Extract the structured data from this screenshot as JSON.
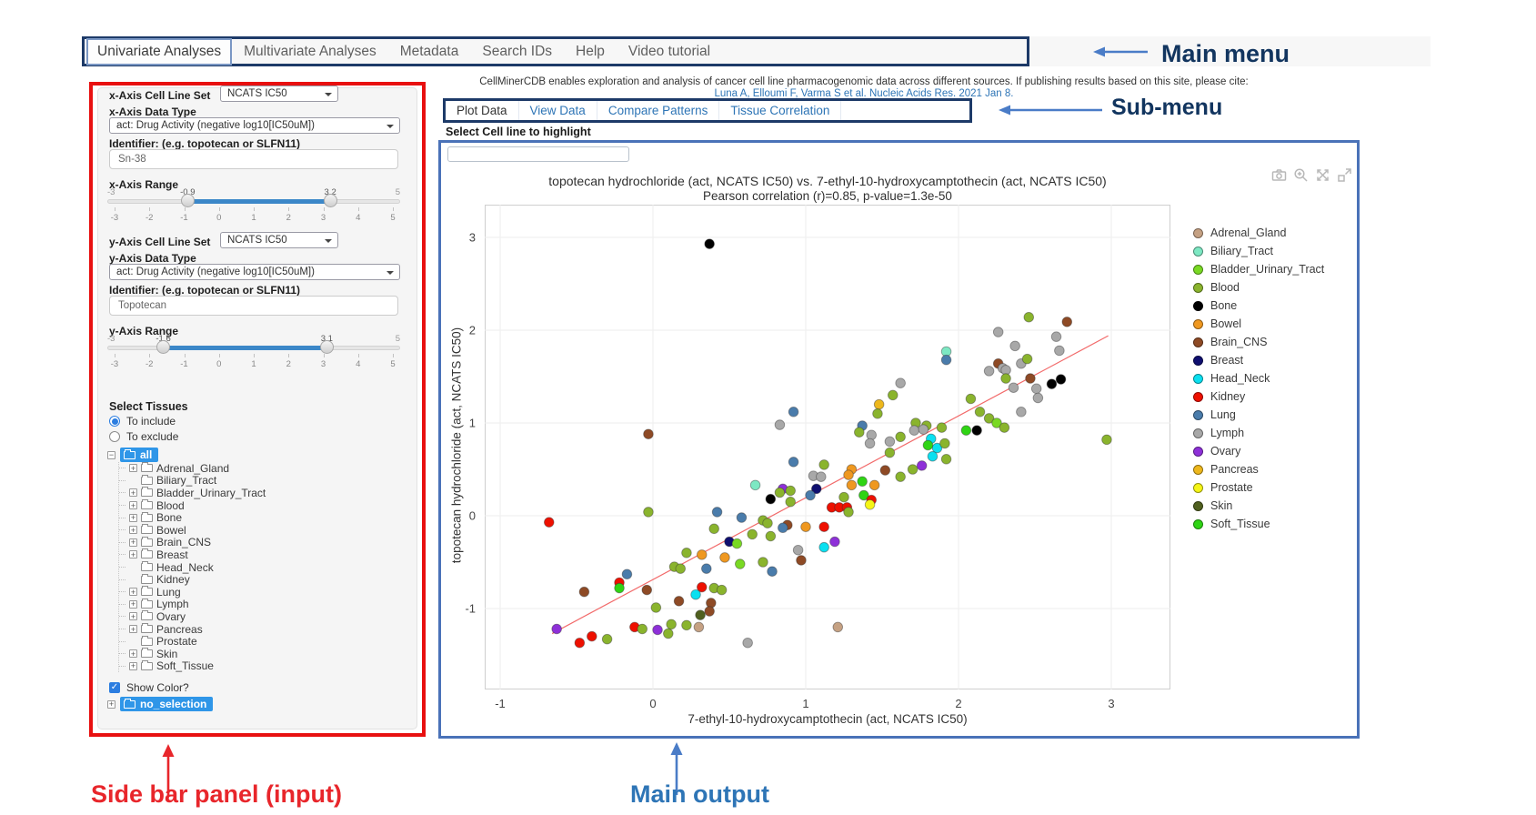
{
  "annotations": {
    "main_menu": "Main menu",
    "sub_menu": "Sub-menu",
    "sidebar": "Side bar panel (input)",
    "main_output": "Main output"
  },
  "main_menu": {
    "items": [
      {
        "label": "Univariate Analyses",
        "active": true
      },
      {
        "label": "Multivariate Analyses",
        "active": false
      },
      {
        "label": "Metadata",
        "active": false
      },
      {
        "label": "Search IDs",
        "active": false
      },
      {
        "label": "Help",
        "active": false
      },
      {
        "label": "Video tutorial",
        "active": false
      }
    ]
  },
  "citation": {
    "line1": "CellMinerCDB enables exploration and analysis of cancer cell line pharmacogenomic data across different sources. If publishing results based on this site, please cite:",
    "link": "Luna A, Elloumi F, Varma S et al. Nucleic Acids Res. 2021 Jan 8."
  },
  "sub_menu": {
    "tabs": [
      {
        "label": "Plot Data",
        "active": true
      },
      {
        "label": "View Data",
        "active": false
      },
      {
        "label": "Compare Patterns",
        "active": false
      },
      {
        "label": "Tissue Correlation",
        "active": false
      }
    ]
  },
  "highlight": {
    "label": "Select Cell line to highlight",
    "value": ""
  },
  "sidebar": {
    "x_axis": {
      "cell_line_set_label": "x-Axis Cell Line Set",
      "cell_line_set_value": "NCATS IC50",
      "data_type_label": "x-Axis Data Type",
      "data_type_value": "act: Drug Activity (negative log10[IC50uM])",
      "identifier_label": "Identifier: (e.g. topotecan or SLFN11)",
      "identifier_value": "Sn-38",
      "range_label": "x-Axis Range",
      "range": {
        "min": -3,
        "max": 5,
        "from": -0.9,
        "to": 3.2,
        "ticks": [
          -3,
          -2,
          -1,
          0,
          1,
          2,
          3,
          4,
          5
        ]
      }
    },
    "y_axis": {
      "cell_line_set_label": "y-Axis Cell Line Set",
      "cell_line_set_value": "NCATS IC50",
      "data_type_label": "y-Axis Data Type",
      "data_type_value": "act: Drug Activity (negative log10[IC50uM])",
      "identifier_label": "Identifier: (e.g. topotecan or SLFN11)",
      "identifier_value": "Topotecan",
      "range_label": "y-Axis Range",
      "range": {
        "min": -3,
        "max": 5,
        "from": -1.6,
        "to": 3.1,
        "ticks": [
          -3,
          -2,
          -1,
          0,
          1,
          2,
          3,
          4,
          5
        ]
      }
    },
    "tissues": {
      "label": "Select Tissues",
      "include_label": "To include",
      "exclude_label": "To exclude",
      "include_selected": true,
      "root": "all",
      "items": [
        {
          "name": "Adrenal_Gland",
          "expandable": true
        },
        {
          "name": "Biliary_Tract",
          "expandable": false
        },
        {
          "name": "Bladder_Urinary_Tract",
          "expandable": true
        },
        {
          "name": "Blood",
          "expandable": true
        },
        {
          "name": "Bone",
          "expandable": true
        },
        {
          "name": "Bowel",
          "expandable": true
        },
        {
          "name": "Brain_CNS",
          "expandable": true
        },
        {
          "name": "Breast",
          "expandable": true
        },
        {
          "name": "Head_Neck",
          "expandable": false
        },
        {
          "name": "Kidney",
          "expandable": false
        },
        {
          "name": "Lung",
          "expandable": true
        },
        {
          "name": "Lymph",
          "expandable": true
        },
        {
          "name": "Ovary",
          "expandable": true
        },
        {
          "name": "Pancreas",
          "expandable": true
        },
        {
          "name": "Prostate",
          "expandable": false
        },
        {
          "name": "Skin",
          "expandable": true
        },
        {
          "name": "Soft_Tissue",
          "expandable": true
        }
      ],
      "show_color_label": "Show Color?",
      "show_color_checked": true,
      "selection_node": "no_selection"
    }
  },
  "plot": {
    "modebar_icons": [
      "camera-icon",
      "zoom-icon",
      "pan-icon",
      "autoscale-icon"
    ]
  },
  "chart_data": {
    "type": "scatter",
    "title": "topotecan hydrochloride (act, NCATS IC50) vs. 7-ethyl-10-hydroxycamptothecin (act, NCATS IC50)",
    "subtitle": "Pearson correlation (r)=0.85, p-value=1.3e-50",
    "xlabel": "7-ethyl-10-hydroxycamptothecin (act, NCATS IC50)",
    "ylabel": "topotecan hydrochloride (act, NCATS IC50)",
    "x_ticks": [
      -1,
      0,
      1,
      2,
      3
    ],
    "y_ticks": [
      -1,
      0,
      1,
      2,
      3
    ],
    "xlim": [
      -1.1,
      3.38
    ],
    "ylim": [
      -1.87,
      3.35
    ],
    "grid": true,
    "legend_position": "right",
    "regression_line": {
      "x1": -0.66,
      "y1": -1.27,
      "x2": 2.98,
      "y2": 1.94,
      "color": "#f26a6a"
    },
    "legend": [
      {
        "name": "Adrenal_Gland",
        "color": "#c5a183"
      },
      {
        "name": "Biliary_Tract",
        "color": "#7de8c3"
      },
      {
        "name": "Bladder_Urinary_Tract",
        "color": "#79d923"
      },
      {
        "name": "Blood",
        "color": "#8ab42d"
      },
      {
        "name": "Bone",
        "color": "#000000"
      },
      {
        "name": "Bowel",
        "color": "#ef9820"
      },
      {
        "name": "Brain_CNS",
        "color": "#8e4a25"
      },
      {
        "name": "Breast",
        "color": "#0f0f70"
      },
      {
        "name": "Head_Neck",
        "color": "#0ae0f0"
      },
      {
        "name": "Kidney",
        "color": "#ee1000"
      },
      {
        "name": "Lung",
        "color": "#4a7cab"
      },
      {
        "name": "Lymph",
        "color": "#a8a8a8"
      },
      {
        "name": "Ovary",
        "color": "#8e30d8"
      },
      {
        "name": "Pancreas",
        "color": "#edb71c"
      },
      {
        "name": "Prostate",
        "color": "#f5f516"
      },
      {
        "name": "Skin",
        "color": "#50601f"
      },
      {
        "name": "Soft_Tissue",
        "color": "#2fd414"
      }
    ],
    "points": [
      [
        0.37,
        2.93,
        "Bone"
      ],
      [
        2.46,
        2.14,
        "Blood"
      ],
      [
        2.71,
        2.09,
        "Brain_CNS"
      ],
      [
        2.26,
        1.98,
        "Lymph"
      ],
      [
        2.64,
        1.93,
        "Lymph"
      ],
      [
        2.37,
        1.83,
        "Lymph"
      ],
      [
        2.66,
        1.78,
        "Lymph"
      ],
      [
        1.92,
        1.77,
        "Biliary_Tract"
      ],
      [
        1.92,
        1.68,
        "Lung"
      ],
      [
        2.26,
        1.64,
        "Brain_CNS"
      ],
      [
        2.29,
        1.59,
        "Lymph"
      ],
      [
        2.2,
        1.56,
        "Lymph"
      ],
      [
        2.31,
        1.57,
        "Lymph"
      ],
      [
        2.41,
        1.64,
        "Lymph"
      ],
      [
        2.45,
        1.69,
        "Blood"
      ],
      [
        2.31,
        1.48,
        "Blood"
      ],
      [
        2.47,
        1.48,
        "Brain_CNS"
      ],
      [
        2.61,
        1.42,
        "Bone"
      ],
      [
        2.67,
        1.47,
        "Bone"
      ],
      [
        2.51,
        1.37,
        "Lymph"
      ],
      [
        2.52,
        1.27,
        "Lymph"
      ],
      [
        2.36,
        1.38,
        "Lymph"
      ],
      [
        2.08,
        1.26,
        "Blood"
      ],
      [
        2.41,
        1.12,
        "Lymph"
      ],
      [
        2.14,
        1.12,
        "Blood"
      ],
      [
        2.2,
        1.05,
        "Blood"
      ],
      [
        2.25,
        1.0,
        "Bladder_Urinary_Tract"
      ],
      [
        2.3,
        0.95,
        "Blood"
      ],
      [
        1.72,
        1.0,
        "Blood"
      ],
      [
        1.79,
        0.97,
        "Blood"
      ],
      [
        1.89,
        0.95,
        "Blood"
      ],
      [
        1.71,
        0.92,
        "Lymph"
      ],
      [
        1.77,
        0.93,
        "Lymph"
      ],
      [
        2.12,
        0.92,
        "Bone"
      ],
      [
        2.05,
        0.92,
        "Soft_Tissue"
      ],
      [
        1.82,
        0.83,
        "Head_Neck"
      ],
      [
        1.86,
        0.73,
        "Head_Neck"
      ],
      [
        1.8,
        0.76,
        "Soft_Tissue"
      ],
      [
        1.83,
        0.64,
        "Head_Neck"
      ],
      [
        1.76,
        0.54,
        "Ovary"
      ],
      [
        1.91,
        0.78,
        "Blood"
      ],
      [
        1.92,
        0.61,
        "Blood"
      ],
      [
        2.97,
        0.82,
        "Blood"
      ],
      [
        1.62,
        1.43,
        "Lymph"
      ],
      [
        1.57,
        1.3,
        "Blood"
      ],
      [
        1.48,
        1.2,
        "Pancreas"
      ],
      [
        1.47,
        1.1,
        "Blood"
      ],
      [
        0.92,
        1.12,
        "Lung"
      ],
      [
        1.37,
        0.97,
        "Lung"
      ],
      [
        0.83,
        0.98,
        "Lymph"
      ],
      [
        -0.03,
        0.88,
        "Brain_CNS"
      ],
      [
        1.43,
        0.87,
        "Lymph"
      ],
      [
        1.62,
        0.85,
        "Blood"
      ],
      [
        1.42,
        0.78,
        "Lymph"
      ],
      [
        1.55,
        0.8,
        "Lymph"
      ],
      [
        1.35,
        0.9,
        "Blood"
      ],
      [
        1.55,
        0.68,
        "Blood"
      ],
      [
        1.12,
        0.55,
        "Blood"
      ],
      [
        1.3,
        0.5,
        "Bowel"
      ],
      [
        1.52,
        0.49,
        "Brain_CNS"
      ],
      [
        1.7,
        0.5,
        "Blood"
      ],
      [
        1.28,
        0.44,
        "Bowel"
      ],
      [
        1.05,
        0.43,
        "Lymph"
      ],
      [
        1.1,
        0.42,
        "Lymph"
      ],
      [
        1.62,
        0.42,
        "Blood"
      ],
      [
        1.37,
        0.37,
        "Soft_Tissue"
      ],
      [
        1.3,
        0.33,
        "Bowel"
      ],
      [
        1.45,
        0.33,
        "Bowel"
      ],
      [
        0.67,
        0.33,
        "Biliary_Tract"
      ],
      [
        0.85,
        0.29,
        "Ovary"
      ],
      [
        0.83,
        0.25,
        "Blood"
      ],
      [
        0.9,
        0.27,
        "Blood"
      ],
      [
        1.07,
        0.29,
        "Breast"
      ],
      [
        1.03,
        0.22,
        "Lung"
      ],
      [
        1.25,
        0.2,
        "Blood"
      ],
      [
        1.38,
        0.22,
        "Soft_Tissue"
      ],
      [
        1.43,
        0.17,
        "Kidney"
      ],
      [
        0.77,
        0.18,
        "Bone"
      ],
      [
        0.9,
        0.15,
        "Blood"
      ],
      [
        1.17,
        0.09,
        "Kidney"
      ],
      [
        1.22,
        0.09,
        "Kidney"
      ],
      [
        1.27,
        0.09,
        "Kidney"
      ],
      [
        1.42,
        0.12,
        "Prostate"
      ],
      [
        1.28,
        0.04,
        "Blood"
      ],
      [
        0.92,
        0.58,
        "Lung"
      ],
      [
        -0.68,
        -0.07,
        "Kidney"
      ],
      [
        -0.03,
        0.04,
        "Blood"
      ],
      [
        0.42,
        0.04,
        "Lung"
      ],
      [
        0.58,
        -0.02,
        "Lung"
      ],
      [
        0.72,
        -0.05,
        "Blood"
      ],
      [
        0.75,
        -0.08,
        "Blood"
      ],
      [
        0.88,
        -0.1,
        "Brain_CNS"
      ],
      [
        0.85,
        -0.13,
        "Lung"
      ],
      [
        1.0,
        -0.12,
        "Bowel"
      ],
      [
        1.12,
        -0.12,
        "Kidney"
      ],
      [
        0.4,
        -0.14,
        "Blood"
      ],
      [
        0.65,
        -0.2,
        "Blood"
      ],
      [
        0.77,
        -0.22,
        "Blood"
      ],
      [
        0.5,
        -0.28,
        "Breast"
      ],
      [
        0.55,
        -0.3,
        "Bladder_Urinary_Tract"
      ],
      [
        1.19,
        -0.28,
        "Ovary"
      ],
      [
        1.12,
        -0.34,
        "Head_Neck"
      ],
      [
        0.95,
        -0.37,
        "Lymph"
      ],
      [
        0.22,
        -0.4,
        "Blood"
      ],
      [
        0.32,
        -0.42,
        "Bowel"
      ],
      [
        0.47,
        -0.45,
        "Bowel"
      ],
      [
        0.97,
        -0.48,
        "Brain_CNS"
      ],
      [
        0.72,
        -0.5,
        "Blood"
      ],
      [
        0.57,
        -0.52,
        "Bladder_Urinary_Tract"
      ],
      [
        0.14,
        -0.55,
        "Blood"
      ],
      [
        0.18,
        -0.57,
        "Blood"
      ],
      [
        0.35,
        -0.57,
        "Lung"
      ],
      [
        0.78,
        -0.6,
        "Lung"
      ],
      [
        -0.17,
        -0.63,
        "Lung"
      ],
      [
        -0.22,
        -0.72,
        "Kidney"
      ],
      [
        -0.22,
        -0.78,
        "Soft_Tissue"
      ],
      [
        0.32,
        -0.77,
        "Kidney"
      ],
      [
        0.4,
        -0.78,
        "Blood"
      ],
      [
        0.45,
        -0.8,
        "Blood"
      ],
      [
        -0.45,
        -0.82,
        "Brain_CNS"
      ],
      [
        -0.04,
        -0.8,
        "Brain_CNS"
      ],
      [
        0.28,
        -0.85,
        "Head_Neck"
      ],
      [
        0.17,
        -0.92,
        "Brain_CNS"
      ],
      [
        0.38,
        -0.94,
        "Brain_CNS"
      ],
      [
        0.02,
        -0.99,
        "Blood"
      ],
      [
        0.37,
        -1.03,
        "Brain_CNS"
      ],
      [
        0.31,
        -1.07,
        "Skin"
      ],
      [
        0.12,
        -1.17,
        "Blood"
      ],
      [
        0.22,
        -1.18,
        "Blood"
      ],
      [
        0.3,
        -1.2,
        "Adrenal_Gland"
      ],
      [
        1.21,
        -1.2,
        "Adrenal_Gland"
      ],
      [
        -0.63,
        -1.22,
        "Ovary"
      ],
      [
        -0.4,
        -1.3,
        "Kidney"
      ],
      [
        -0.12,
        -1.2,
        "Kidney"
      ],
      [
        -0.07,
        -1.22,
        "Blood"
      ],
      [
        0.03,
        -1.23,
        "Ovary"
      ],
      [
        0.1,
        -1.27,
        "Blood"
      ],
      [
        -0.3,
        -1.33,
        "Blood"
      ],
      [
        -0.48,
        -1.37,
        "Kidney"
      ],
      [
        0.62,
        -1.37,
        "Lymph"
      ]
    ]
  }
}
